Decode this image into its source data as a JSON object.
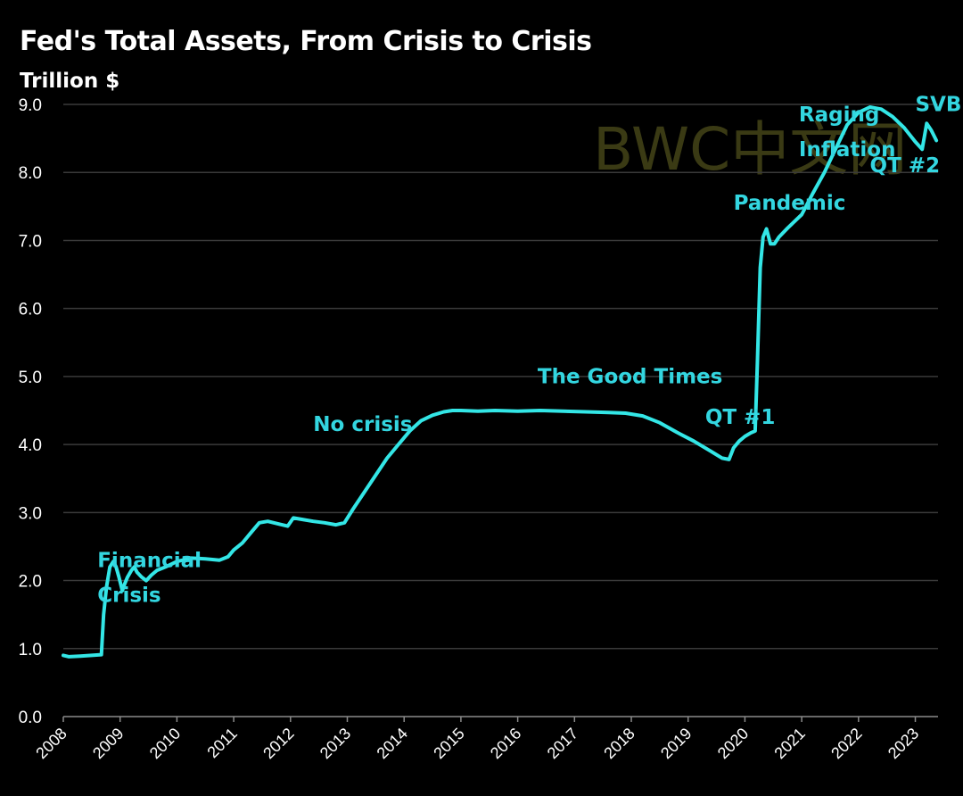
{
  "chart_data": {
    "type": "line",
    "title": "Fed's Total Assets, From Crisis to Crisis",
    "ylabel": "Trillion $",
    "ylim": [
      0,
      9
    ],
    "yticks": [
      "0.0",
      "1.0",
      "2.0",
      "3.0",
      "4.0",
      "5.0",
      "6.0",
      "7.0",
      "8.0",
      "9.0"
    ],
    "xlim": [
      2008,
      2023.4
    ],
    "xticks": [
      "2008",
      "2009",
      "2010",
      "2011",
      "2012",
      "2013",
      "2014",
      "2015",
      "2016",
      "2017",
      "2018",
      "2019",
      "2020",
      "2021",
      "2022",
      "2023"
    ],
    "grid": true,
    "line_color": "#33e6e6",
    "watermark": "BWC中文网",
    "series": [
      {
        "x": [
          2008.0,
          2008.1,
          2008.3,
          2008.5,
          2008.67,
          2008.71,
          2008.76,
          2008.82,
          2008.88,
          2008.93,
          2008.98,
          2009.04,
          2009.08,
          2009.13,
          2009.2,
          2009.25,
          2009.3,
          2009.38,
          2009.46,
          2009.55,
          2009.65,
          2009.8,
          2010.0,
          2010.25,
          2010.5,
          2010.75,
          2010.9,
          2011.0,
          2011.15,
          2011.3,
          2011.45,
          2011.6,
          2011.8,
          2011.95,
          2012.05,
          2012.2,
          2012.4,
          2012.6,
          2012.8,
          2012.95,
          2013.1,
          2013.3,
          2013.5,
          2013.7,
          2013.9,
          2014.1,
          2014.3,
          2014.5,
          2014.7,
          2014.85,
          2015.0,
          2015.3,
          2015.6,
          2016.0,
          2016.4,
          2016.8,
          2017.2,
          2017.6,
          2017.9,
          2018.2,
          2018.5,
          2018.8,
          2019.1,
          2019.4,
          2019.6,
          2019.72,
          2019.8,
          2019.9,
          2020.0,
          2020.1,
          2020.18,
          2020.22,
          2020.27,
          2020.32,
          2020.38,
          2020.45,
          2020.52,
          2020.6,
          2020.75,
          2020.9,
          2021.0,
          2021.2,
          2021.4,
          2021.6,
          2021.8,
          2022.0,
          2022.2,
          2022.4,
          2022.6,
          2022.8,
          2023.0,
          2023.12,
          2023.2,
          2023.28,
          2023.37
        ],
        "y": [
          0.9,
          0.88,
          0.89,
          0.9,
          0.91,
          1.5,
          1.9,
          2.2,
          2.28,
          2.2,
          2.05,
          1.85,
          1.95,
          2.05,
          2.15,
          2.2,
          2.12,
          2.05,
          2.0,
          2.08,
          2.15,
          2.2,
          2.28,
          2.33,
          2.32,
          2.3,
          2.35,
          2.45,
          2.55,
          2.7,
          2.85,
          2.87,
          2.83,
          2.8,
          2.92,
          2.9,
          2.87,
          2.85,
          2.82,
          2.85,
          3.05,
          3.3,
          3.55,
          3.8,
          4.0,
          4.2,
          4.35,
          4.43,
          4.48,
          4.5,
          4.5,
          4.49,
          4.5,
          4.49,
          4.5,
          4.49,
          4.48,
          4.47,
          4.46,
          4.42,
          4.32,
          4.18,
          4.05,
          3.9,
          3.8,
          3.78,
          3.95,
          4.05,
          4.12,
          4.17,
          4.2,
          5.2,
          6.6,
          7.05,
          7.17,
          6.95,
          6.95,
          7.05,
          7.18,
          7.3,
          7.38,
          7.7,
          8.0,
          8.35,
          8.7,
          8.88,
          8.96,
          8.93,
          8.82,
          8.66,
          8.45,
          8.34,
          8.72,
          8.62,
          8.47
        ]
      }
    ],
    "annotations": [
      {
        "lines": [
          "Financial",
          "Crisis"
        ],
        "x": 2008.6,
        "y": 2.2
      },
      {
        "lines": [
          "No crisis"
        ],
        "x": 2012.4,
        "y": 4.2
      },
      {
        "lines": [
          "The Good Times"
        ],
        "x": 2016.35,
        "y": 4.9
      },
      {
        "lines": [
          "QT #1"
        ],
        "x": 2019.3,
        "y": 4.3
      },
      {
        "lines": [
          "Pandemic"
        ],
        "x": 2019.8,
        "y": 7.45
      },
      {
        "lines": [
          "Raging",
          "Inflation"
        ],
        "x": 2020.95,
        "y": 8.75
      },
      {
        "lines": [
          "SVB"
        ],
        "x": 2023.0,
        "y": 8.9
      },
      {
        "lines": [
          "QT #2"
        ],
        "x": 2022.2,
        "y": 8.0
      }
    ]
  }
}
